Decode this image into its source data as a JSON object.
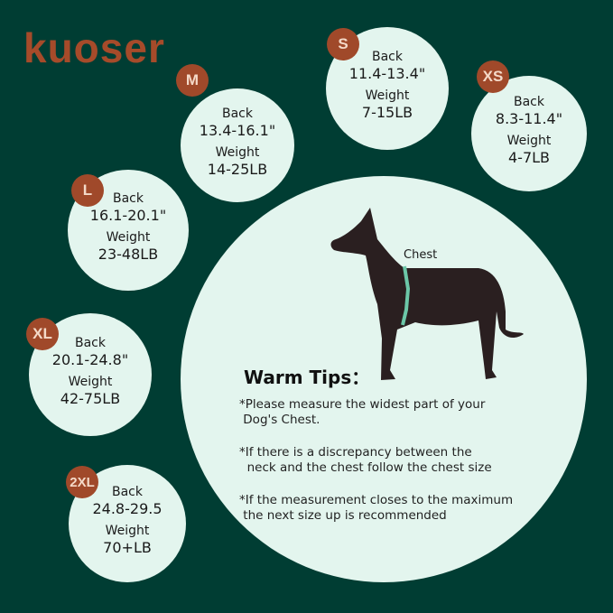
{
  "brand": {
    "logo": "kuoser",
    "color": "#a64b2a"
  },
  "colors": {
    "background": "#003d33",
    "circle": "#e3f5ee",
    "badge": "#a0492a"
  },
  "sizes": [
    {
      "size": "M",
      "back_label": "Back",
      "back": "13.4-16.1\"",
      "weight_label": "Weight",
      "weight": "14-25LB"
    },
    {
      "size": "S",
      "back_label": "Back",
      "back": "11.4-13.4\"",
      "weight_label": "Weight",
      "weight": "7-15LB"
    },
    {
      "size": "XS",
      "back_label": "Back",
      "back": "8.3-11.4\"",
      "weight_label": "Weight",
      "weight": "4-7LB"
    },
    {
      "size": "L",
      "back_label": "Back",
      "back": "16.1-20.1\"",
      "weight_label": "Weight",
      "weight": "23-48LB"
    },
    {
      "size": "XL",
      "back_label": "Back",
      "back": "20.1-24.8\"",
      "weight_label": "Weight",
      "weight": "42-75LB"
    },
    {
      "size": "2XL",
      "back_label": "Back",
      "back": "24.8-29.5",
      "weight_label": "Weight",
      "weight": "70+LB"
    }
  ],
  "diagram": {
    "chest_label": "Chest"
  },
  "tips": {
    "title": "Warm Tips：",
    "items": [
      "*Please measure the widest part of your\n Dog's Chest.",
      "*If there is a discrepancy between the\n  neck and the chest follow the chest size",
      "*If the measurement closes to the maximum\n the next size up is recommended"
    ]
  }
}
